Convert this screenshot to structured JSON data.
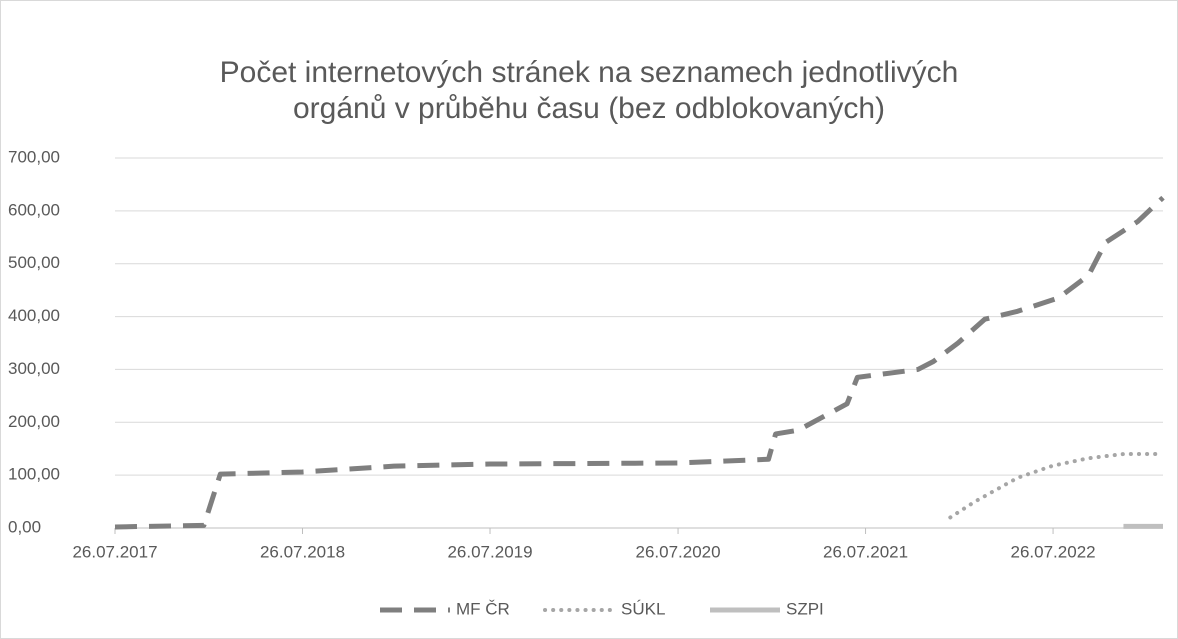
{
  "chart_data": {
    "type": "line",
    "title": [
      "Počet internetových stránek na seznamech jednotlivých",
      "orgánů v průběhu času (bez odblokovaných)"
    ],
    "xlim": [
      "2017-07-26",
      "2023-02-25"
    ],
    "xticks": [
      {
        "value": "2017-07-26",
        "label": "26.07.2017"
      },
      {
        "value": "2018-07-26",
        "label": "26.07.2018"
      },
      {
        "value": "2019-07-26",
        "label": "26.07.2019"
      },
      {
        "value": "2020-07-26",
        "label": "26.07.2020"
      },
      {
        "value": "2021-07-26",
        "label": "26.07.2021"
      },
      {
        "value": "2022-07-26",
        "label": "26.07.2022"
      }
    ],
    "ylim": [
      0,
      700
    ],
    "yticks": [
      {
        "value": 0,
        "label": "0,00"
      },
      {
        "value": 100,
        "label": "100,00"
      },
      {
        "value": 200,
        "label": "200,00"
      },
      {
        "value": 300,
        "label": "300,00"
      },
      {
        "value": 400,
        "label": "400,00"
      },
      {
        "value": 500,
        "label": "500,00"
      },
      {
        "value": 600,
        "label": "600,00"
      },
      {
        "value": 700,
        "label": "700,00"
      }
    ],
    "grid": true,
    "legend": "bottom",
    "series": [
      {
        "name": "MF ČR",
        "color": "#7f7f7f",
        "style": "dashed",
        "x": [
          "2017-07-26",
          "2018-01-15",
          "2018-02-16",
          "2018-07-26",
          "2019-01-20",
          "2019-07-26",
          "2020-07-26",
          "2021-01-18",
          "2021-02-01",
          "2021-03-17",
          "2021-06-20",
          "2021-07-10",
          "2021-11-05",
          "2021-12-05",
          "2022-01-22",
          "2022-03-15",
          "2022-05-18",
          "2022-08-05",
          "2022-10-03",
          "2022-11-05",
          "2023-01-07",
          "2023-02-25"
        ],
        "values": [
          2,
          5,
          102,
          106,
          117,
          121,
          123,
          130,
          178,
          185,
          235,
          285,
          300,
          315,
          350,
          395,
          410,
          435,
          478,
          540,
          580,
          625
        ]
      },
      {
        "name": "SÚKL",
        "color": "#a6a6a6",
        "style": "dotted",
        "x": [
          "2022-01-07",
          "2022-02-24",
          "2022-05-18",
          "2022-07-26",
          "2022-10-03",
          "2022-12-10",
          "2023-02-25"
        ],
        "values": [
          20,
          50,
          95,
          118,
          132,
          140,
          140
        ]
      },
      {
        "name": "SZPI",
        "color": "#bfbfbf",
        "style": "solid",
        "x": [
          "2022-12-10",
          "2023-02-25"
        ],
        "values": [
          3,
          3
        ]
      }
    ]
  }
}
